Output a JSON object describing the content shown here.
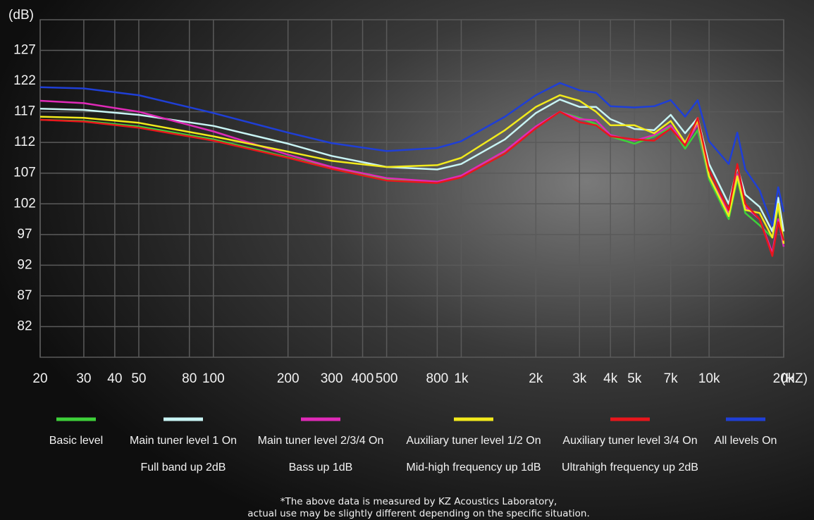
{
  "chart_data": {
    "type": "line",
    "y_label": "(dB)",
    "x_label": "(HZ)",
    "xscale": "log",
    "grid": true,
    "xlim": [
      20,
      20000
    ],
    "ylim": [
      77,
      132
    ],
    "yticks": [
      82,
      87,
      92,
      97,
      102,
      107,
      112,
      117,
      122,
      127
    ],
    "xticks": [
      20,
      30,
      40,
      50,
      80,
      100,
      200,
      300,
      400,
      500,
      800,
      {
        "value": 1000,
        "label": "1k"
      },
      {
        "value": 2000,
        "label": "2k"
      },
      {
        "value": 3000,
        "label": "3k"
      },
      {
        "value": 4000,
        "label": "4k"
      },
      {
        "value": 5000,
        "label": "5k"
      },
      {
        "value": 7000,
        "label": "7k"
      },
      {
        "value": 10000,
        "label": "10k"
      },
      {
        "value": 20000,
        "label": "20k"
      }
    ],
    "x": [
      20,
      30,
      50,
      100,
      200,
      300,
      500,
      800,
      1000,
      1500,
      2000,
      2500,
      3000,
      3500,
      4000,
      5000,
      6000,
      7000,
      8000,
      9000,
      10000,
      12000,
      13000,
      14000,
      16000,
      18000,
      19000,
      20000
    ],
    "series": [
      {
        "name": "Basic level",
        "color": "#3ed13a",
        "values": [
          115.7,
          115.5,
          114.6,
          112.5,
          109.6,
          107.8,
          106.0,
          105.5,
          106.5,
          110.5,
          114.5,
          117.0,
          116.0,
          115.0,
          113.0,
          111.8,
          113.0,
          114.5,
          111.0,
          114.0,
          106.0,
          99.5,
          106.0,
          100.5,
          98.5,
          96.5,
          101.5,
          96
        ]
      },
      {
        "name": "Main tuner level 1 On",
        "note": "Full band up 2dB",
        "color": "#c8f4f4",
        "values": [
          117.5,
          117.3,
          116.5,
          114.7,
          111.8,
          109.8,
          108.0,
          107.6,
          108.5,
          112.5,
          116.8,
          119.0,
          117.8,
          117.8,
          115.8,
          114.2,
          114.0,
          116.5,
          113.5,
          116.0,
          108.5,
          102.0,
          108.0,
          103.5,
          101.5,
          97.5,
          103.0,
          97.5
        ]
      },
      {
        "name": "Main tuner level 2/3/4 On",
        "note": "Bass up 1dB",
        "color": "#e02ab8",
        "values": [
          118.8,
          118.4,
          117.0,
          113.8,
          110.0,
          108.0,
          106.2,
          105.6,
          106.6,
          110.6,
          114.6,
          117.0,
          115.8,
          115.6,
          113.2,
          112.3,
          113.2,
          114.8,
          111.5,
          115.0,
          106.5,
          100.5,
          106.8,
          101.5,
          99.5,
          94.0,
          99.5,
          95
        ]
      },
      {
        "name": "Auxiliary tuner level 1/2 On",
        "note": "Mid-high frequency up 1dB",
        "color": "#f2ea1c",
        "values": [
          116.2,
          116.0,
          115.2,
          113.0,
          110.5,
          109.0,
          108.0,
          108.3,
          109.5,
          114.0,
          117.8,
          119.7,
          118.8,
          117.0,
          114.8,
          114.8,
          113.5,
          115.5,
          112.0,
          115.5,
          106.5,
          100.0,
          106.5,
          101.0,
          100.5,
          96.5,
          102.0,
          95.5
        ]
      },
      {
        "name": "Auxiliary tuner level 3/4 On",
        "note": "Ultrahigh frequency up 2dB",
        "color": "#e8161c",
        "values": [
          115.7,
          115.4,
          114.4,
          112.3,
          109.5,
          107.7,
          105.8,
          105.4,
          106.3,
          110.2,
          114.3,
          117.0,
          115.3,
          114.8,
          113.0,
          112.5,
          112.3,
          114.3,
          111.5,
          116.0,
          107.5,
          101.0,
          108.5,
          102.0,
          99.5,
          93.5,
          99.0,
          96
        ]
      },
      {
        "name": "All levels On",
        "color": "#1f3fd6",
        "values": [
          121.0,
          120.8,
          119.7,
          116.8,
          113.6,
          111.9,
          110.6,
          111.1,
          112.2,
          116.2,
          119.7,
          121.7,
          120.5,
          120.1,
          117.9,
          117.7,
          117.9,
          118.9,
          116.2,
          118.9,
          112.2,
          108.5,
          113.6,
          107.6,
          104.2,
          98.4,
          104.7,
          100.7
        ]
      }
    ],
    "footnote": [
      "*The above data is measured by KZ Acoustics Laboratory,",
      "actual use may be slightly different depending on the specific situation."
    ]
  }
}
